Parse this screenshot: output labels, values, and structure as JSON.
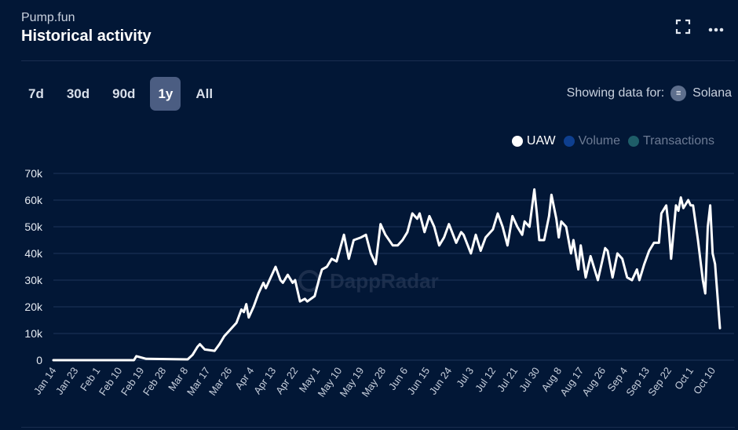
{
  "header": {
    "subtitle": "Pump.fun",
    "title": "Historical activity"
  },
  "icons": {
    "expand": "expand-icon",
    "more": "more-icon"
  },
  "ranges": [
    {
      "label": "7d",
      "active": false
    },
    {
      "label": "30d",
      "active": false
    },
    {
      "label": "90d",
      "active": false
    },
    {
      "label": "1y",
      "active": true
    },
    {
      "label": "All",
      "active": false
    }
  ],
  "showing": {
    "label": "Showing data for:",
    "chain": "Solana",
    "chain_icon": "≡"
  },
  "legend": [
    {
      "label": "UAW",
      "color": "#ffffff",
      "active": true
    },
    {
      "label": "Volume",
      "color": "#0e3f8f",
      "active": false
    },
    {
      "label": "Transactions",
      "color": "#1e5d68",
      "active": false
    }
  ],
  "watermark": "DappRadar",
  "chart_data": {
    "type": "line",
    "title": "Historical activity",
    "series": [
      {
        "name": "UAW",
        "color": "#ffffff",
        "points_note_x": "days since Jan 14",
        "points": [
          [
            0,
            0
          ],
          [
            33,
            0
          ],
          [
            34,
            1.5
          ],
          [
            38,
            0.5
          ],
          [
            55,
            0.3
          ],
          [
            57,
            2
          ],
          [
            59,
            5
          ],
          [
            60,
            6
          ],
          [
            62,
            4
          ],
          [
            66,
            3.5
          ],
          [
            68,
            6
          ],
          [
            70,
            9
          ],
          [
            72,
            11
          ],
          [
            75,
            14
          ],
          [
            77,
            19
          ],
          [
            78,
            18
          ],
          [
            79,
            21
          ],
          [
            80,
            16
          ],
          [
            82,
            20
          ],
          [
            84,
            25
          ],
          [
            86,
            29
          ],
          [
            87,
            27
          ],
          [
            89,
            31
          ],
          [
            91,
            35
          ],
          [
            93,
            30
          ],
          [
            94,
            29
          ],
          [
            96,
            32
          ],
          [
            98,
            29
          ],
          [
            99,
            30
          ],
          [
            101,
            22
          ],
          [
            103,
            23
          ],
          [
            104,
            22
          ],
          [
            107,
            24
          ],
          [
            109,
            31
          ],
          [
            110,
            34
          ],
          [
            112,
            35
          ],
          [
            114,
            38
          ],
          [
            116,
            37
          ],
          [
            119,
            47
          ],
          [
            121,
            38
          ],
          [
            123,
            45
          ],
          [
            126,
            46
          ],
          [
            128,
            47
          ],
          [
            130,
            40
          ],
          [
            132,
            36
          ],
          [
            134,
            51
          ],
          [
            136,
            47
          ],
          [
            139,
            43
          ],
          [
            141,
            43
          ],
          [
            143,
            45
          ],
          [
            145,
            48
          ],
          [
            147,
            55
          ],
          [
            149,
            53
          ],
          [
            150,
            55
          ],
          [
            152,
            48
          ],
          [
            154,
            54
          ],
          [
            156,
            50
          ],
          [
            158,
            43
          ],
          [
            160,
            46
          ],
          [
            162,
            51
          ],
          [
            165,
            44
          ],
          [
            167,
            48
          ],
          [
            168,
            47
          ],
          [
            171,
            40
          ],
          [
            173,
            47
          ],
          [
            175,
            41
          ],
          [
            177,
            46
          ],
          [
            180,
            49
          ],
          [
            182,
            55
          ],
          [
            184,
            50
          ],
          [
            186,
            43
          ],
          [
            188,
            54
          ],
          [
            190,
            50
          ],
          [
            192,
            47
          ],
          [
            193,
            52
          ],
          [
            195,
            50
          ],
          [
            197,
            64
          ],
          [
            198,
            55
          ],
          [
            199,
            45
          ],
          [
            201,
            45
          ],
          [
            203,
            54
          ],
          [
            204,
            62
          ],
          [
            206,
            53
          ],
          [
            207,
            46
          ],
          [
            208,
            52
          ],
          [
            210,
            50
          ],
          [
            212,
            40
          ],
          [
            213,
            45
          ],
          [
            215,
            34
          ],
          [
            216,
            43
          ],
          [
            218,
            31
          ],
          [
            220,
            39
          ],
          [
            221,
            36
          ],
          [
            223,
            30
          ],
          [
            226,
            42
          ],
          [
            227,
            41
          ],
          [
            229,
            31
          ],
          [
            231,
            40
          ],
          [
            233,
            38
          ],
          [
            235,
            31
          ],
          [
            237,
            30
          ],
          [
            239,
            34
          ],
          [
            240,
            30
          ],
          [
            242,
            36
          ],
          [
            244,
            41
          ],
          [
            246,
            44
          ],
          [
            248,
            44
          ],
          [
            249,
            55
          ],
          [
            251,
            58
          ],
          [
            252,
            50
          ],
          [
            253,
            38
          ],
          [
            255,
            58
          ],
          [
            256,
            56
          ],
          [
            257,
            61
          ],
          [
            258,
            57
          ],
          [
            260,
            60
          ],
          [
            261,
            58
          ],
          [
            262,
            58
          ],
          [
            264,
            45
          ],
          [
            266,
            30
          ],
          [
            267,
            25
          ],
          [
            268,
            50
          ],
          [
            269,
            58
          ],
          [
            270,
            40
          ],
          [
            271,
            36
          ],
          [
            273,
            12
          ]
        ]
      }
    ],
    "x_ticks": [
      "Jan 14",
      "Jan 23",
      "Feb 1",
      "Feb 10",
      "Feb 19",
      "Feb 28",
      "Mar 8",
      "Mar 17",
      "Mar 26",
      "Apr 4",
      "Apr 13",
      "Apr 22",
      "May 1",
      "May 10",
      "May 19",
      "May 28",
      "Jun 6",
      "Jun 15",
      "Jun 24",
      "Jul 3",
      "Jul 12",
      "Jul 21",
      "Jul 30",
      "Aug 8",
      "Aug 17",
      "Aug 26",
      "Sep 4",
      "Sep 13",
      "Sep 22",
      "Oct 1",
      "Oct 10"
    ],
    "x_tick_step_days": 9,
    "xlim": [
      0,
      273
    ],
    "y_ticks": [
      "0",
      "10k",
      "20k",
      "30k",
      "40k",
      "50k",
      "60k",
      "70k"
    ],
    "y_unit": "thousands",
    "ylim": [
      0,
      70
    ],
    "grid": true,
    "legend_position": "top-right"
  }
}
